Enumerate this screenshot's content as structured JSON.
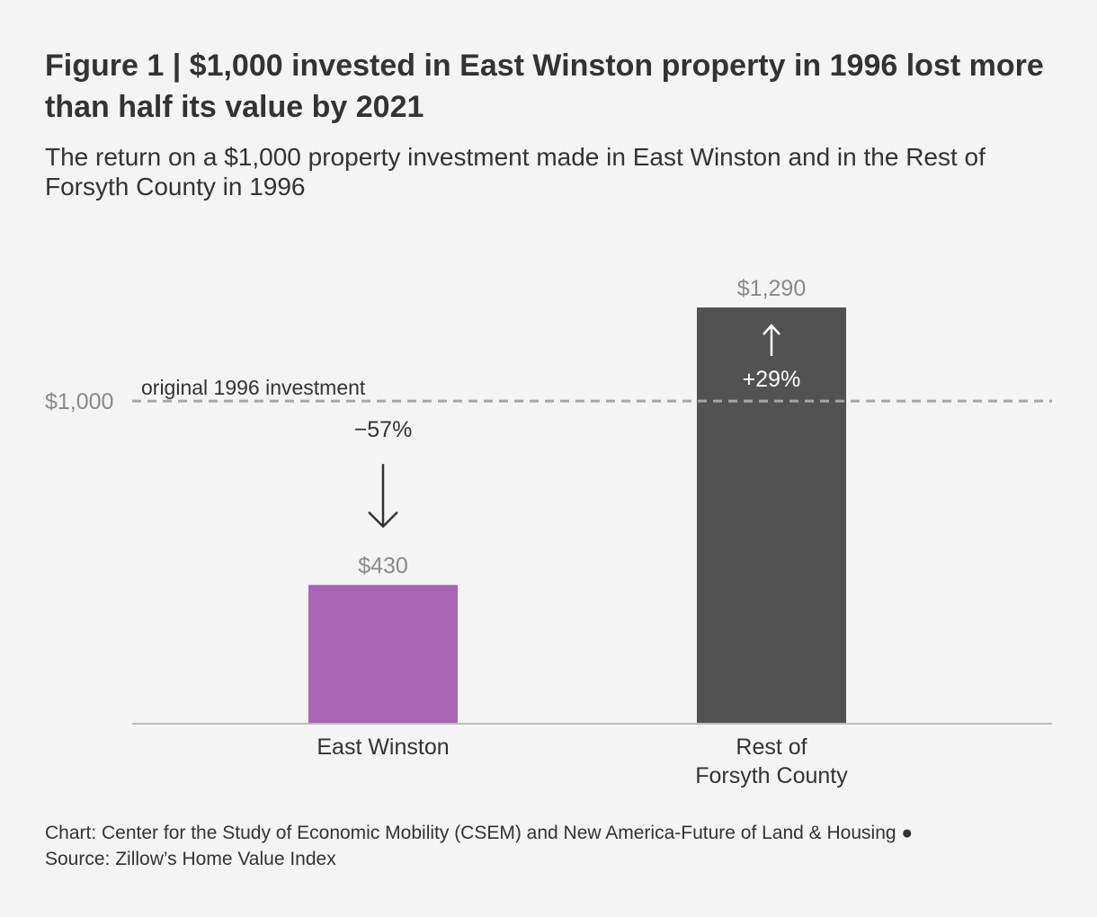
{
  "header": {
    "title": "Figure 1 | $1,000 invested in East Winston property in 1996 lost more than half its value by 2021",
    "subtitle": "The return on a $1,000 property investment made in East Winston and in the Rest of Forsyth County in 1996"
  },
  "footer": {
    "line1": "Chart: Center for the Study of Economic Mobility (CSEM) and New America-Future of Land & Housing ●",
    "line2": "Source: Zillow’s Home Value Index"
  },
  "colors": {
    "east_winston": "#a765b3",
    "rest_of_forsyth": "#525252",
    "reference_line": "#a6a6a6",
    "axis": "#bbbbbb",
    "muted_text": "#8a8a8a",
    "text": "#333333"
  },
  "chart_data": {
    "type": "bar",
    "categories": [
      [
        "East Winston"
      ],
      [
        "Rest of",
        "Forsyth County"
      ]
    ],
    "values": [
      430,
      1290
    ],
    "value_labels": [
      "$430",
      "$1,290"
    ],
    "changes": [
      "−57%",
      "+29%"
    ],
    "change_direction": [
      "down",
      "up"
    ],
    "reference_line": {
      "value": 1000,
      "label": "$1,000",
      "annotation": "original 1996 investment"
    },
    "ylim": [
      0,
      1290
    ],
    "xlabel": "",
    "ylabel": "",
    "grid": false,
    "legend": "none"
  }
}
